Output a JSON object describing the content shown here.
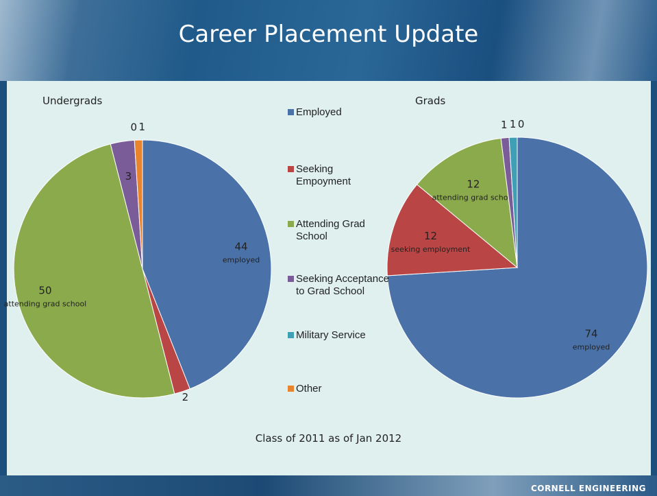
{
  "slide": {
    "title": "Career Placement Update",
    "caption": "Class of 2011 as of Jan 2012",
    "brand": "CORNELL ENGINEERING"
  },
  "chart_data": [
    {
      "type": "pie",
      "title": "Undergrads",
      "categories": [
        "Employed",
        "Seeking Empoyment",
        "Attending Grad School",
        "Seeking Acceptance to Grad School",
        "Military Service",
        "Other"
      ],
      "values": [
        44,
        2,
        50,
        3,
        0,
        1
      ],
      "slice_notes": [
        "employed",
        null,
        "attending grad school",
        null,
        null,
        null
      ],
      "colors": [
        "#4a72a8",
        "#b94545",
        "#8aaa4b",
        "#7a5c99",
        "#3fa0b5",
        "#e8832e"
      ],
      "legend": true
    },
    {
      "type": "pie",
      "title": "Grads",
      "categories": [
        "Employed",
        "Seeking Empoyment",
        "Attending Grad School",
        "Seeking Acceptance to Grad School",
        "Military Service",
        "Other"
      ],
      "values": [
        74,
        12,
        12,
        1,
        1,
        0
      ],
      "slice_notes": [
        "employed",
        "seeking employment",
        "attending grad school",
        null,
        null,
        null
      ],
      "colors": [
        "#4a72a8",
        "#b94545",
        "#8aaa4b",
        "#7a5c99",
        "#3fa0b5",
        "#e8832e"
      ],
      "legend": false
    }
  ]
}
